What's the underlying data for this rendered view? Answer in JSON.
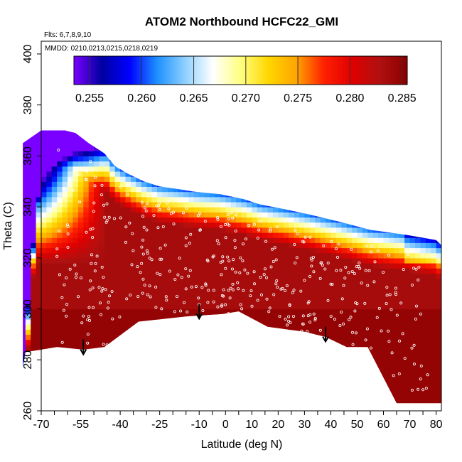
{
  "chart_data": {
    "type": "heatmap",
    "title": "ATOM2 Northbound HCFC22_GMI",
    "annotations": {
      "flights": "Flts: 6,7,8,9,10",
      "dates": "MMDD: 0210,0213,0215,0218,0219"
    },
    "xlabel": "Latitude (deg N)",
    "ylabel": "Theta (C)",
    "xlim": [
      -70,
      82
    ],
    "ylim": [
      260,
      405
    ],
    "x_ticks": [
      -70,
      -55,
      -40,
      -25,
      -10,
      0,
      10,
      20,
      30,
      40,
      50,
      60,
      70,
      80
    ],
    "y_ticks": [
      260,
      280,
      300,
      320,
      340,
      360,
      380,
      400
    ],
    "colorbar": {
      "range": [
        0.2535,
        0.2855
      ],
      "ticks": [
        0.255,
        0.26,
        0.265,
        0.27,
        0.275,
        0.28,
        0.285
      ],
      "tick_labels": [
        "0.255",
        "0.260",
        "0.265",
        "0.270",
        "0.275",
        "0.280",
        "0.285"
      ],
      "colors": [
        "#7a00ff",
        "#0000a0",
        "#0000ff",
        "#1e90ff",
        "#8ed0ff",
        "#ffffff",
        "#ffff80",
        "#ffd700",
        "#ffa500",
        "#ff2000",
        "#e00000",
        "#b01010",
        "#8b0000"
      ]
    },
    "grid": false,
    "field_outline": [
      [
        -77,
        277
      ],
      [
        -76,
        283
      ],
      [
        -64,
        285
      ],
      [
        -54,
        284
      ],
      [
        -46,
        285
      ],
      [
        -33,
        295
      ],
      [
        -15,
        297
      ],
      [
        -1,
        298
      ],
      [
        5,
        299
      ],
      [
        16,
        293
      ],
      [
        30,
        291
      ],
      [
        38,
        289
      ],
      [
        46,
        285
      ],
      [
        54,
        285
      ],
      [
        65,
        263
      ],
      [
        82,
        263
      ],
      [
        82,
        325
      ],
      [
        80,
        327
      ],
      [
        69,
        329
      ],
      [
        55,
        331
      ],
      [
        44,
        334
      ],
      [
        32,
        337
      ],
      [
        23,
        339
      ],
      [
        13,
        341
      ],
      [
        7,
        343
      ],
      [
        -2,
        345
      ],
      [
        -12,
        346
      ],
      [
        -18,
        347
      ],
      [
        -25,
        348
      ],
      [
        -31,
        350
      ],
      [
        -37,
        353
      ],
      [
        -42,
        356
      ],
      [
        -46,
        361
      ],
      [
        -52,
        365
      ],
      [
        -57,
        369
      ],
      [
        -61,
        370
      ],
      [
        -70,
        370
      ],
      [
        -77,
        365
      ]
    ],
    "sample_level_values": [
      {
        "lat": -60,
        "theta": 362,
        "value": 0.256
      },
      {
        "lat": -55,
        "theta": 350,
        "value": 0.262
      },
      {
        "lat": -45,
        "theta": 358,
        "value": 0.266
      },
      {
        "lat": -20,
        "theta": 350,
        "value": 0.274
      },
      {
        "lat": 0,
        "theta": 320,
        "value": 0.281
      },
      {
        "lat": 40,
        "theta": 310,
        "value": 0.282
      },
      {
        "lat": 70,
        "theta": 280,
        "value": 0.284
      }
    ],
    "arrows": [
      {
        "lat": -54,
        "theta": 288
      },
      {
        "lat": -10,
        "theta": 302
      },
      {
        "lat": 38,
        "theta": 293
      }
    ]
  }
}
